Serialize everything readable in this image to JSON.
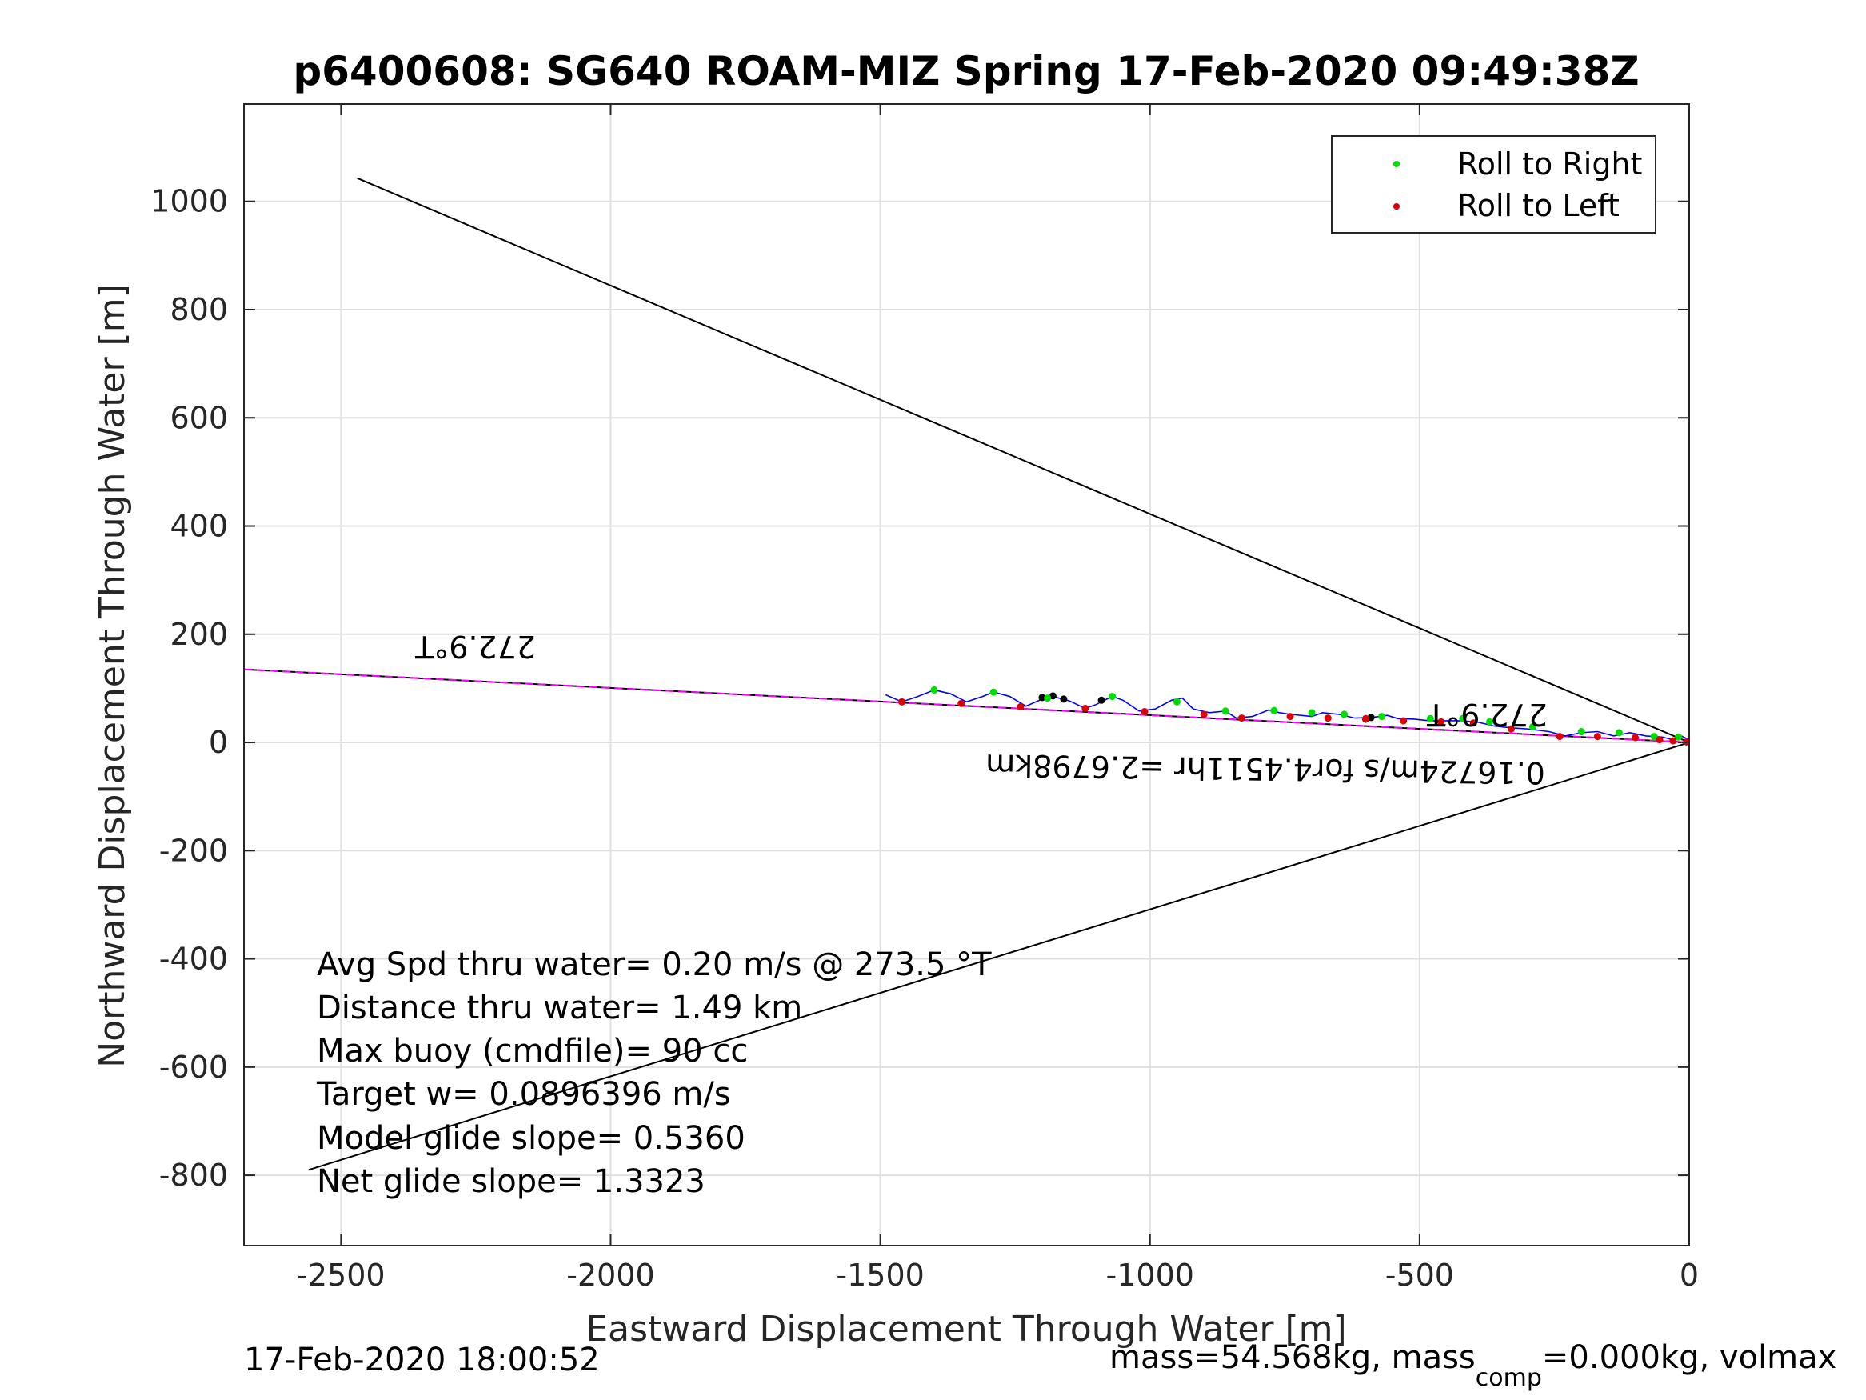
{
  "chart_data": {
    "type": "line",
    "title": "p6400608: SG640 ROAM-MIZ Spring 17-Feb-2020 09:49:38Z",
    "xlabel": "Eastward Displacement Through Water [m]",
    "ylabel": "Northward Displacement Through Water [m]",
    "xlim": [
      -2680,
      0
    ],
    "ylim": [
      -930,
      1180
    ],
    "xticks": [
      -2500,
      -2000,
      -1500,
      -1000,
      -500,
      0
    ],
    "yticks": [
      -800,
      -600,
      -400,
      -200,
      0,
      200,
      400,
      600,
      800,
      1000
    ],
    "grid": true,
    "legend": {
      "placement": "top-right",
      "entries": [
        {
          "label": "Roll to Right",
          "color": "#00e000"
        },
        {
          "label": "Roll to Left",
          "color": "#e00000"
        }
      ]
    },
    "colors": {
      "track": "#0000ff",
      "heading_line": "#ff00ff",
      "cone": "#000000",
      "grid": "#e0e0e0"
    },
    "lines": [
      {
        "role": "cone-upper",
        "x": [
          -2470,
          0
        ],
        "y": [
          1043,
          0
        ]
      },
      {
        "role": "cone-lower",
        "x": [
          -2560,
          0
        ],
        "y": [
          -790,
          0
        ]
      },
      {
        "role": "heading",
        "x": [
          -2680,
          0
        ],
        "y": [
          135,
          0
        ]
      }
    ],
    "track": {
      "x": [
        -1490,
        -1460,
        -1430,
        -1400,
        -1370,
        -1340,
        -1310,
        -1290,
        -1260,
        -1230,
        -1200,
        -1180,
        -1150,
        -1120,
        -1100,
        -1070,
        -1050,
        -1020,
        -990,
        -960,
        -940,
        -920,
        -890,
        -860,
        -840,
        -810,
        -780,
        -760,
        -740,
        -700,
        -680,
        -650,
        -620,
        -590,
        -560,
        -540,
        -510,
        -480,
        -460,
        -420,
        -390,
        -360,
        -330,
        -300,
        -260,
        -230,
        -200,
        -170,
        -140,
        -110,
        -80,
        -50,
        -30,
        -15,
        0
      ],
      "y": [
        88,
        75,
        85,
        97,
        90,
        75,
        85,
        93,
        85,
        67,
        80,
        85,
        77,
        63,
        70,
        85,
        78,
        58,
        62,
        78,
        82,
        62,
        55,
        58,
        45,
        48,
        60,
        55,
        52,
        48,
        55,
        52,
        45,
        46,
        50,
        44,
        43,
        40,
        40,
        40,
        37,
        30,
        27,
        25,
        20,
        12,
        18,
        20,
        12,
        18,
        12,
        10,
        5,
        12,
        5
      ]
    },
    "roll_right_points": {
      "x": [
        -1400,
        -1290,
        -1190,
        -1070,
        -950,
        -860,
        -770,
        -700,
        -640,
        -570,
        -480,
        -420,
        -370,
        -290,
        -200,
        -130,
        -65,
        -20
      ],
      "y": [
        97,
        93,
        82,
        85,
        75,
        58,
        59,
        55,
        52,
        48,
        44,
        44,
        38,
        29,
        20,
        18,
        11,
        10
      ]
    },
    "roll_left_points": {
      "x": [
        -1460,
        -1350,
        -1240,
        -1120,
        -1010,
        -900,
        -830,
        -740,
        -670,
        -600,
        -530,
        -460,
        -400,
        -330,
        -240,
        -170,
        -100,
        -55,
        -30,
        -5
      ],
      "y": [
        75,
        72,
        66,
        63,
        57,
        52,
        45,
        48,
        45,
        44,
        40,
        38,
        36,
        25,
        11,
        11,
        9,
        5,
        3,
        1
      ]
    },
    "black_points": {
      "x": [
        -1200,
        -1180,
        -1160,
        -1090,
        -600,
        -590
      ],
      "y": [
        83,
        86,
        80,
        78,
        43,
        46
      ]
    },
    "annotations": {
      "heading_left": "272.9°T",
      "heading_right": "272.9°T",
      "speed_line": "0.16724m/s for4.4511hr =2.6798km"
    },
    "stats": [
      "Avg Spd thru water=  0.20 m/s @ 273.5 °T",
      "Distance thru water=  1.49 km",
      "Max buoy (cmdfile)= 90 cc",
      "Target w= 0.0896396 m/s",
      "Model glide slope= 0.5360",
      "Net glide slope= 1.3323"
    ]
  },
  "footer": {
    "timestamp": "17-Feb-2020 18:00:52",
    "mass_prefix": "mass=54.568kg, mass",
    "mass_sub": "comp",
    "mass_suffix": "=0.000kg, volmax"
  }
}
